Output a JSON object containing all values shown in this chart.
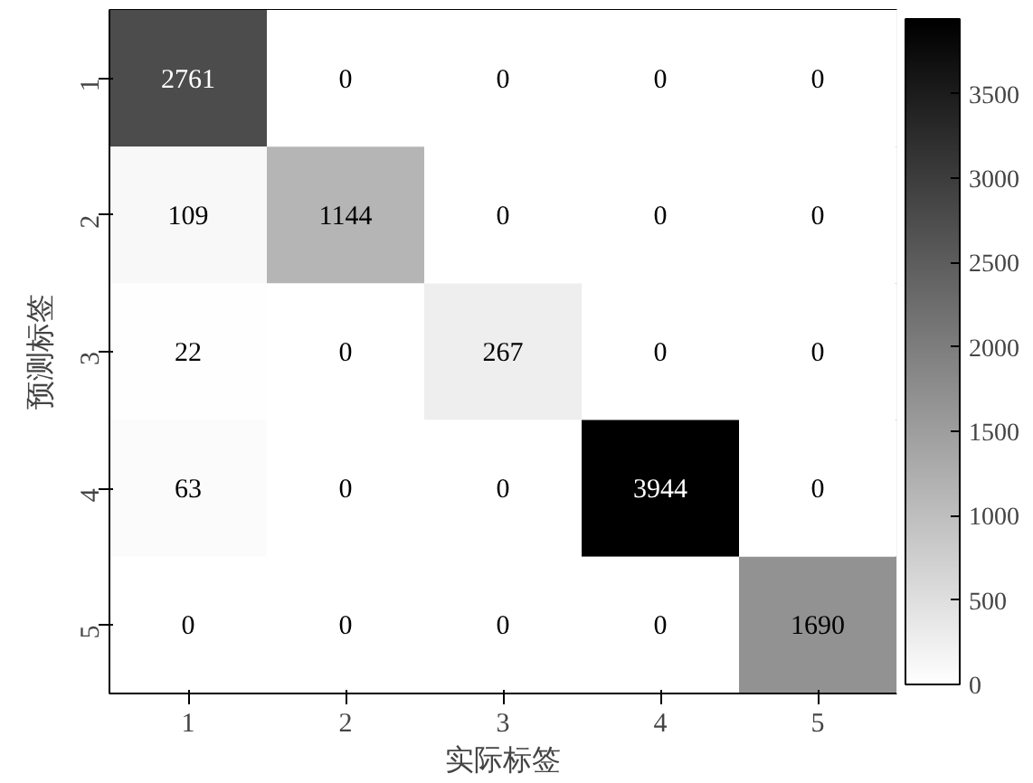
{
  "chart_data": {
    "type": "heatmap",
    "xlabel": "实际标签",
    "ylabel": "预测标签",
    "categories": [
      "1",
      "2",
      "3",
      "4",
      "5"
    ],
    "y_categories": [
      "1",
      "2",
      "3",
      "4",
      "5"
    ],
    "cells": [
      [
        2761,
        0,
        0,
        0,
        0
      ],
      [
        109,
        1144,
        0,
        0,
        0
      ],
      [
        22,
        0,
        267,
        0,
        0
      ],
      [
        63,
        0,
        0,
        3944,
        0
      ],
      [
        0,
        0,
        0,
        0,
        1690
      ]
    ],
    "data_labels": true,
    "clim": [
      0,
      3944
    ],
    "cticks": [
      0,
      500,
      1000,
      1500,
      2000,
      2500,
      3000,
      3500
    ]
  }
}
